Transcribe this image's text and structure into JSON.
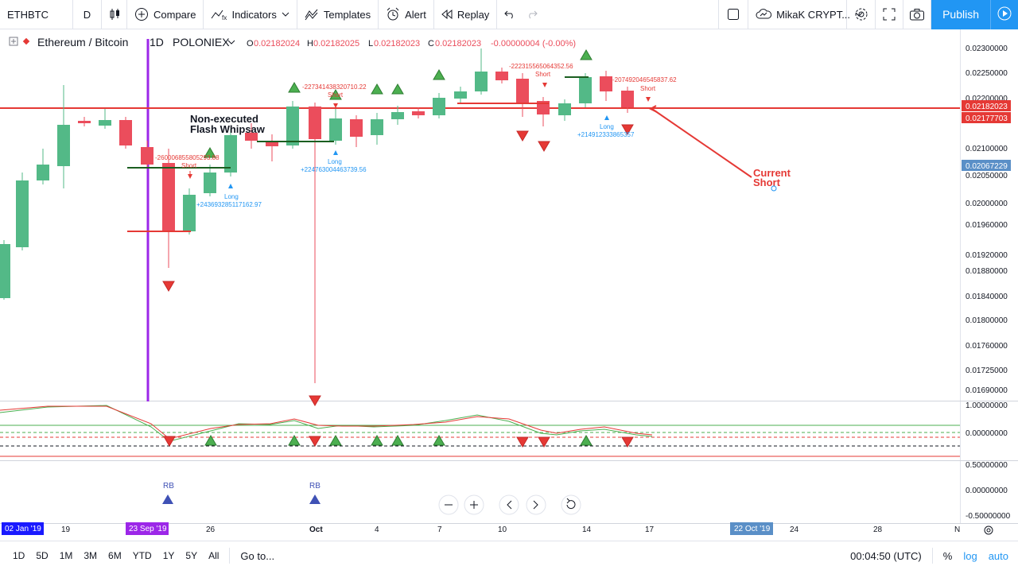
{
  "toolbar": {
    "symbol": "ETHBTC",
    "interval": "D",
    "compare": "Compare",
    "indicators": "Indicators",
    "templates": "Templates",
    "alert": "Alert",
    "replay": "Replay",
    "layout_name": "MikaK CRYPT...",
    "publish": "Publish"
  },
  "legend": {
    "pair": "Ethereum / Bitcoin",
    "interval": "1D",
    "exchange": "POLONIEX",
    "open": "0.02182024",
    "high": "0.02182025",
    "low": "0.02182023",
    "close": "0.02182023",
    "change": "-0.00000004 (-0.00%)"
  },
  "price_axis": {
    "ticks": [
      "0.02300000",
      "0.02250000",
      "0.02200000",
      "0.02100000",
      "0.02050000",
      "0.02000000",
      "0.01960000",
      "0.01920000",
      "0.01880000",
      "0.01840000",
      "0.01800000",
      "0.01760000",
      "0.01725000",
      "0.01690000"
    ],
    "last_price": "0.02182023",
    "line_price": "0.02177703",
    "marker_price": "0.02067229"
  },
  "osc_axis": {
    "ticks": [
      "1.00000000",
      "0.00000000"
    ]
  },
  "osc2_axis": {
    "ticks": [
      "0.50000000",
      "0.00000000",
      "-0.50000000"
    ]
  },
  "time_axis": {
    "ticks": [
      "19",
      "26",
      "Oct",
      "4",
      "7",
      "10",
      "14",
      "17",
      "24",
      "28",
      "N"
    ],
    "highlight_start": "02 Jan '19",
    "highlight_vline": "23 Sep '19",
    "highlight_crosshair": "22 Oct '19"
  },
  "annotations": {
    "flash_title_line1": "Non-executed",
    "flash_title_line2": "Flash Whipsaw",
    "current_line1": "Current",
    "current_line2": "Short",
    "s1_value": "-260006855805293.88",
    "s1_label": "Short",
    "s2_value": "-227341438320710.22",
    "s2_label": "Short",
    "s3_value": "-222315565064352.56",
    "s3_label": "Short",
    "s4_value": "-207492046545837.62",
    "s4_label": "Short",
    "l1_label": "Long",
    "l1_value": "+243693285117162.97",
    "l2_label": "Long",
    "l2_value": "+224763004463739.56",
    "l3_label": "Long",
    "l3_value": "+214912333865357",
    "rb1": "RB",
    "rb2": "RB"
  },
  "bottom": {
    "ranges": [
      "1D",
      "5D",
      "1M",
      "3M",
      "6M",
      "YTD",
      "1Y",
      "5Y",
      "All"
    ],
    "goto": "Go to...",
    "clock": "00:04:50 (UTC)",
    "percent": "%",
    "log": "log",
    "auto": "auto"
  },
  "colors": {
    "up": "#53b987",
    "down": "#eb4d5c",
    "accent": "#2196f3",
    "vline": "#9c27e8",
    "hline": "#e53935"
  }
}
